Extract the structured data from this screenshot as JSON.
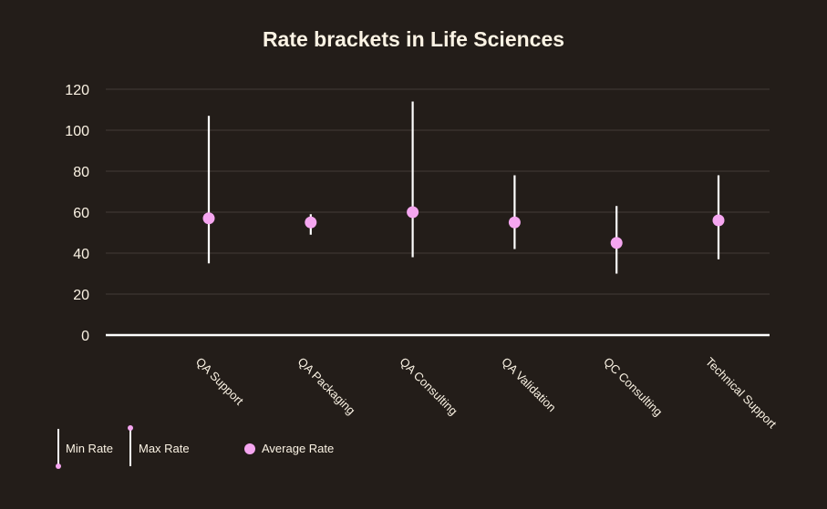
{
  "colors": {
    "background": "#231d19",
    "text": "#fbf3e4",
    "range_line": "#ffffff",
    "average_dot": "#f5a6f0",
    "gridline": "#3d3631",
    "baseline": "#ffffff"
  },
  "chart_data": {
    "type": "range-dot",
    "title": "Rate brackets in Life Sciences",
    "xlabel": "",
    "ylabel": "",
    "ylim": [
      0,
      120
    ],
    "yticks": [
      0,
      20,
      40,
      60,
      80,
      100,
      120
    ],
    "grid": true,
    "legend_position": "bottom-left",
    "categories": [
      "QA Support",
      "QA Packaging",
      "QA Consulting",
      "QA Validation",
      "QC Consulting",
      "Technical Support"
    ],
    "series": [
      {
        "name": "Min Rate",
        "values": [
          35,
          49,
          38,
          42,
          30,
          37
        ]
      },
      {
        "name": "Max Rate",
        "values": [
          107,
          59,
          114,
          78,
          63,
          78
        ]
      },
      {
        "name": "Average Rate",
        "values": [
          57,
          55,
          60,
          55,
          45,
          56
        ]
      }
    ]
  }
}
